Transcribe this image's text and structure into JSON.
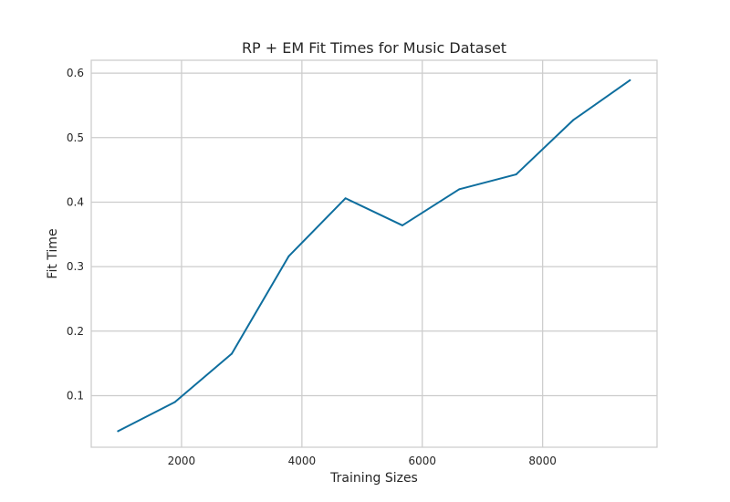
{
  "chart_data": {
    "type": "line",
    "title": "RP + EM Fit Times for Music Dataset",
    "xlabel": "Training Sizes",
    "ylabel": "Fit Time",
    "xlim": [
      500,
      9900
    ],
    "ylim": [
      0.02,
      0.62
    ],
    "x_ticks": [
      2000,
      4000,
      6000,
      8000
    ],
    "y_ticks": [
      0.1,
      0.2,
      0.3,
      0.4,
      0.5,
      0.6
    ],
    "grid": true,
    "legend": "none",
    "series": [
      {
        "color": "#0e6e9e",
        "x": [
          945,
          1890,
          2835,
          3780,
          4725,
          5670,
          6615,
          7560,
          8505,
          9450
        ],
        "y": [
          0.045,
          0.09,
          0.165,
          0.316,
          0.406,
          0.364,
          0.42,
          0.443,
          0.527,
          0.589
        ]
      }
    ]
  }
}
